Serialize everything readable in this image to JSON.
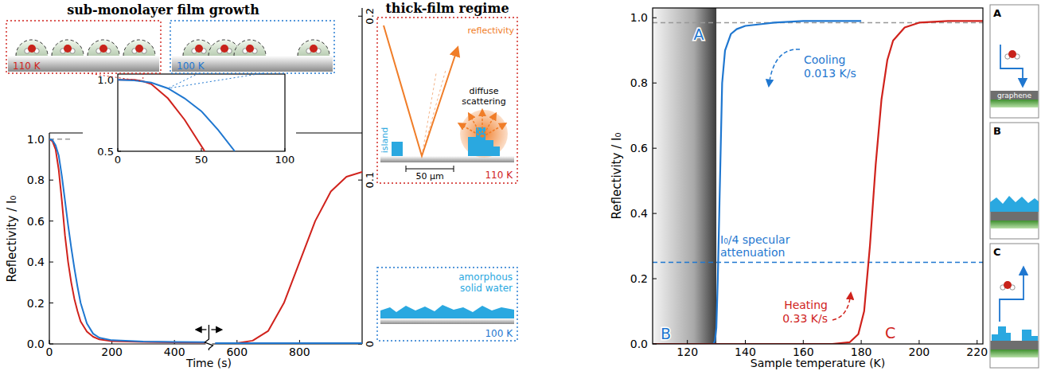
{
  "chart_data": [
    {
      "type": "line",
      "x_label": "Time (s)",
      "y_label": "Reflectivity / I₀",
      "xlim": [
        0,
        1000
      ],
      "xticks": [
        0,
        200,
        400,
        600,
        800
      ],
      "ylim": [
        0,
        1.03
      ],
      "yticks": [
        {
          "value": 0,
          "label": "0.0"
        },
        {
          "value": 0.2,
          "label": "0.2"
        },
        {
          "value": 0.4,
          "label": "0.4"
        },
        {
          "value": 0.6,
          "label": "0.6"
        },
        {
          "value": 0.8,
          "label": "0.8"
        },
        {
          "value": 1.0,
          "label": "1.0"
        }
      ],
      "y2lim": [
        0,
        0.205
      ],
      "y2ticks": [
        0,
        0.1,
        0.2
      ],
      "axis_break": 510,
      "reference_lines": [
        {
          "value": 1.0,
          "color": "#999999",
          "line_style": "dashed"
        }
      ],
      "series": [
        {
          "color": "#d0221c",
          "x": [
            0,
            10,
            20,
            30,
            40,
            50,
            60,
            70,
            80,
            90,
            100,
            120,
            140,
            160,
            200,
            300,
            400,
            500
          ],
          "values": [
            1.0,
            0.99,
            0.95,
            0.85,
            0.7,
            0.53,
            0.4,
            0.3,
            0.22,
            0.16,
            0.11,
            0.06,
            0.035,
            0.022,
            0.014,
            0.01,
            0.008,
            0.007
          ]
        },
        {
          "color": "#1f77d0",
          "x": [
            0,
            10,
            20,
            30,
            40,
            50,
            60,
            70,
            80,
            90,
            100,
            120,
            140,
            160,
            200,
            300,
            400,
            500
          ],
          "values": [
            1.0,
            0.995,
            0.97,
            0.92,
            0.82,
            0.7,
            0.58,
            0.47,
            0.37,
            0.28,
            0.2,
            0.1,
            0.05,
            0.03,
            0.018,
            0.012,
            0.01,
            0.009
          ]
        },
        {
          "color": "#d0221c",
          "axis": "y2",
          "x": [
            530,
            600,
            650,
            700,
            750,
            800,
            850,
            900,
            950,
            1000
          ],
          "values": [
            0.0,
            0.0005,
            0.002,
            0.008,
            0.025,
            0.05,
            0.075,
            0.093,
            0.102,
            0.105
          ]
        },
        {
          "color": "#1f77d0",
          "axis": "y2",
          "x": [
            530,
            700,
            850,
            1000
          ],
          "values": [
            0.0005,
            0.0005,
            0.0005,
            0.0005
          ]
        }
      ]
    },
    {
      "type": "line",
      "xlim": [
        0,
        100
      ],
      "xticks": [
        0,
        50,
        100
      ],
      "ylim": [
        0.5,
        1.04
      ],
      "yticks": [
        {
          "value": 0.5,
          "label": "0.5"
        },
        {
          "value": 1.0,
          "label": "1.0"
        }
      ],
      "series": [
        {
          "color": "#d0221c",
          "x": [
            0,
            10,
            15,
            20,
            30,
            40,
            52
          ],
          "values": [
            1.0,
            1.0,
            0.99,
            0.97,
            0.87,
            0.72,
            0.5
          ]
        },
        {
          "color": "#1f77d0",
          "x": [
            0,
            10,
            20,
            30,
            40,
            50,
            60,
            70
          ],
          "values": [
            1.0,
            0.995,
            0.98,
            0.94,
            0.87,
            0.78,
            0.65,
            0.5
          ]
        }
      ]
    },
    {
      "type": "line",
      "x_label": "Sample temperature (K)",
      "y_label": "Reflectivity / I₀",
      "xlim": [
        108,
        222
      ],
      "xticks": [
        120,
        140,
        160,
        180,
        200,
        220
      ],
      "ylim": [
        0,
        1.03
      ],
      "yticks": [
        {
          "value": 0,
          "label": "0.0"
        },
        {
          "value": 0.2,
          "label": "0.2"
        },
        {
          "value": 0.4,
          "label": "0.4"
        },
        {
          "value": 0.6,
          "label": "0.6"
        },
        {
          "value": 0.8,
          "label": "0.8"
        },
        {
          "value": 1.0,
          "label": "1.0"
        }
      ],
      "shaded_region": [
        108,
        130
      ],
      "reference_lines": [
        {
          "value": 0.985,
          "color": "#999999",
          "line_style": "dashed"
        },
        {
          "value": 0.25,
          "color": "#1f77d0",
          "line_style": "dashed"
        }
      ],
      "series": [
        {
          "color": "#1f77d0",
          "x": [
            180,
            170,
            160,
            150,
            145,
            140,
            137,
            135,
            133,
            132,
            131.5,
            131,
            130.5,
            130,
            129.5,
            129,
            108
          ],
          "values": [
            0.99,
            0.99,
            0.99,
            0.985,
            0.98,
            0.975,
            0.965,
            0.95,
            0.9,
            0.8,
            0.6,
            0.4,
            0.2,
            0.05,
            0.01,
            0,
            0
          ]
        },
        {
          "color": "#d0221c",
          "x": [
            108,
            170,
            176,
            179,
            181,
            183,
            185,
            187,
            189,
            191,
            195,
            200,
            210,
            222
          ],
          "values": [
            0,
            0,
            0.005,
            0.03,
            0.1,
            0.3,
            0.55,
            0.75,
            0.87,
            0.93,
            0.97,
            0.985,
            0.99,
            0.99
          ]
        }
      ],
      "annotations": [
        {
          "text": "A",
          "color": "#1f77d0"
        },
        {
          "text": "B",
          "color": "#1f77d0"
        },
        {
          "text": "C",
          "color": "#d0221c"
        },
        {
          "text": "Cooling",
          "color": "#1f77d0"
        },
        {
          "text": "0.013 K/s",
          "color": "#1f77d0"
        },
        {
          "text": "Heating",
          "color": "#d0221c"
        },
        {
          "text": "0.33 K/s",
          "color": "#d0221c"
        },
        {
          "text": "I₀/4 specular",
          "color": "#1f77d0"
        },
        {
          "text": "attenuation",
          "color": "#1f77d0"
        }
      ]
    }
  ],
  "diagrams": {
    "sub_monolayer": {
      "title": "sub-monolayer film growth",
      "left_temperature": "110 K",
      "right_temperature": "100 K"
    },
    "thick_film": {
      "title": "thick-film regime",
      "reflectivity": "reflectivity",
      "diffuse": "diffuse scattering",
      "island": "island",
      "scale_bar": "50 μm",
      "temperature_110": "110 K",
      "asw": "amorphous solid water",
      "temperature_100": "100 K"
    },
    "panels": [
      {
        "letter": "A",
        "label": "graphene"
      },
      {
        "letter": "B"
      },
      {
        "letter": "C"
      }
    ]
  }
}
